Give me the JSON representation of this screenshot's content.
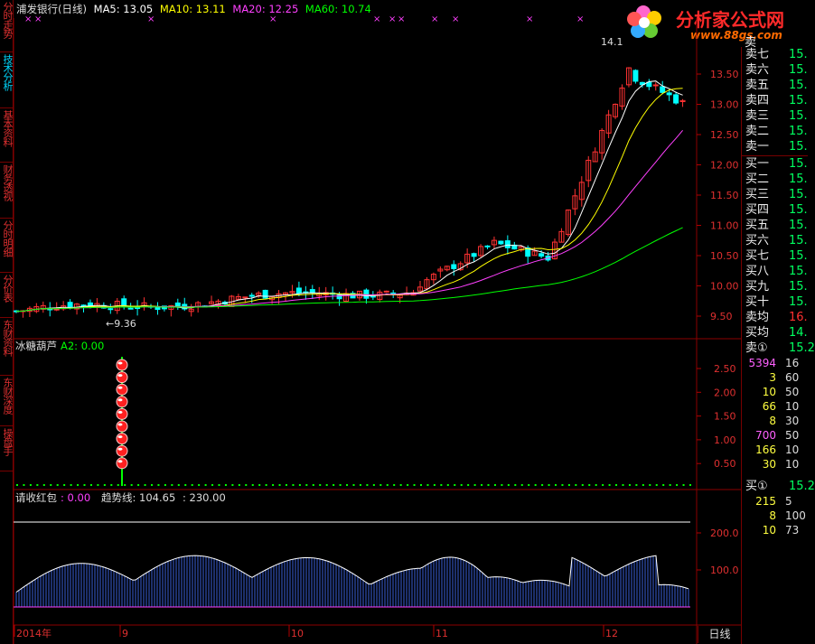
{
  "side_tabs": [
    {
      "label": "分时走势",
      "active": false
    },
    {
      "label": "技术分析",
      "active": true
    },
    {
      "label": "基本资料",
      "active": false
    },
    {
      "label": "财务透视",
      "active": false
    },
    {
      "label": "分时明细",
      "active": false
    },
    {
      "label": "分价表",
      "active": false
    },
    {
      "label": "东财资料",
      "active": false
    },
    {
      "label": "东财深度",
      "active": false
    },
    {
      "label": "操盘手",
      "active": false
    }
  ],
  "main_header": {
    "stock": "浦发银行(日线)",
    "ma5": "MA5: 13.05",
    "ma10": "MA10: 13.11",
    "ma20": "MA20: 12.25",
    "ma60": "MA60: 10.74",
    "colors": {
      "ma5": "#ffffff",
      "ma10": "#ffff00",
      "ma20": "#ff40ff",
      "ma60": "#00ff00"
    }
  },
  "price_annotations": {
    "high": "14.1",
    "low": "←9.36"
  },
  "logo": {
    "title": "分析家公式网",
    "url": "www.88gs.com"
  },
  "price_axis": [
    "13.50",
    "13.00",
    "12.50",
    "12.00",
    "11.50",
    "11.00",
    "10.50",
    "10.00",
    "9.50"
  ],
  "indicator1": {
    "name": "冰糖葫芦",
    "value": "A2: 0.00",
    "axis": [
      "2.50",
      "2.00",
      "1.50",
      "1.00",
      "0.50"
    ]
  },
  "indicator2": {
    "name": "请收红包",
    "value": ": 0.00",
    "trend_label": "趋势线: 104.65",
    "extra": ": 230.00",
    "axis": [
      "200.0",
      "100.0"
    ]
  },
  "date_axis": [
    "2014年",
    "9",
    "10",
    "11",
    "12"
  ],
  "period_button": "日线",
  "order_book": {
    "sells": [
      {
        "label": "卖七",
        "price": "15."
      },
      {
        "label": "卖六",
        "price": "15."
      },
      {
        "label": "卖五",
        "price": "15."
      },
      {
        "label": "卖四",
        "price": "15."
      },
      {
        "label": "卖三",
        "price": "15."
      },
      {
        "label": "卖二",
        "price": "15."
      },
      {
        "label": "卖一",
        "price": "15."
      }
    ],
    "buys": [
      {
        "label": "买一",
        "price": "15."
      },
      {
        "label": "买二",
        "price": "15."
      },
      {
        "label": "买三",
        "price": "15."
      },
      {
        "label": "买四",
        "price": "15."
      },
      {
        "label": "买五",
        "price": "15."
      },
      {
        "label": "买六",
        "price": "15."
      },
      {
        "label": "买七",
        "price": "15."
      },
      {
        "label": "买八",
        "price": "15."
      },
      {
        "label": "买九",
        "price": "15."
      },
      {
        "label": "买十",
        "price": "15."
      }
    ],
    "avg_sell": {
      "label": "卖均",
      "price": "16."
    },
    "avg_buy": {
      "label": "买均",
      "price": "14."
    },
    "sell_marker": {
      "label": "卖①",
      "price": "15.2"
    },
    "queue1": [
      {
        "a": "5394",
        "b": "16",
        "color": "#ff60ff"
      },
      {
        "a": "3",
        "b": "60",
        "color": "#ffff40"
      },
      {
        "a": "10",
        "b": "50",
        "color": "#ffff40"
      },
      {
        "a": "66",
        "b": "10",
        "color": "#ffff40"
      },
      {
        "a": "8",
        "b": "30",
        "color": "#ffff40"
      },
      {
        "a": "700",
        "b": "50",
        "color": "#ff60ff"
      },
      {
        "a": "166",
        "b": "10",
        "color": "#ffff40"
      },
      {
        "a": "30",
        "b": "10",
        "color": "#ffff40"
      }
    ],
    "buy_marker": {
      "label": "买①",
      "price": "15.2"
    },
    "queue2": [
      {
        "a": "215",
        "b": "5",
        "color": "#ffff40"
      },
      {
        "a": "8",
        "b": "100",
        "color": "#ffff40"
      },
      {
        "a": "10",
        "b": "73",
        "color": "#ffff40"
      }
    ],
    "top_label": "卖"
  }
}
